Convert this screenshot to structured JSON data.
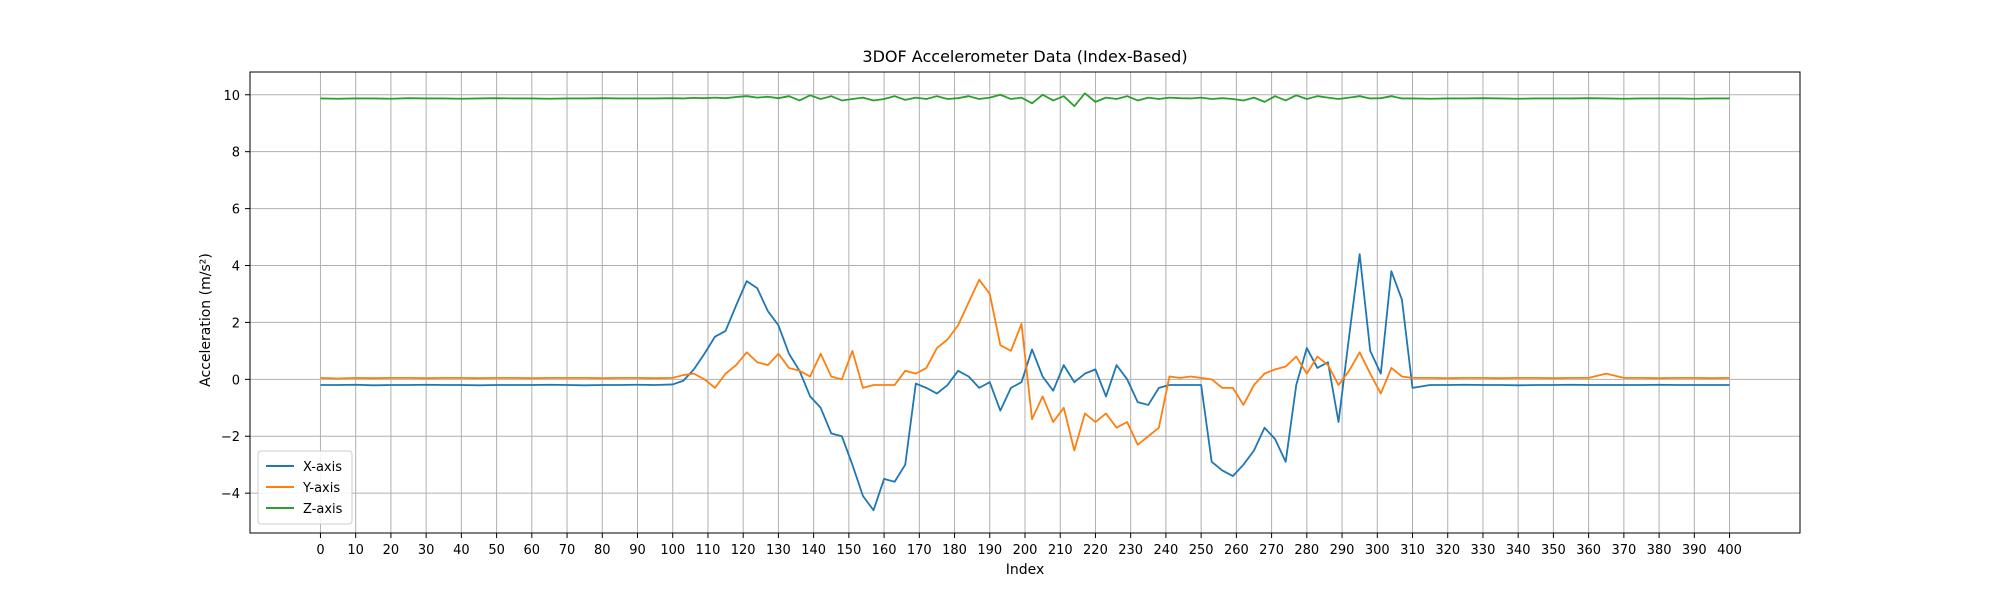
{
  "chart_data": {
    "type": "line",
    "title": "3DOF Accelerometer Data (Index-Based)",
    "xlabel": "Index",
    "ylabel": "Acceleration (m/s²)",
    "xlim": [
      -20,
      420
    ],
    "ylim": [
      -5.4,
      10.8
    ],
    "xticks": [
      0,
      10,
      20,
      30,
      40,
      50,
      60,
      70,
      80,
      90,
      100,
      110,
      120,
      130,
      140,
      150,
      160,
      170,
      180,
      190,
      200,
      210,
      220,
      230,
      240,
      250,
      260,
      270,
      280,
      290,
      300,
      310,
      320,
      330,
      340,
      350,
      360,
      370,
      380,
      390,
      400
    ],
    "yticks": [
      -4,
      -2,
      0,
      2,
      4,
      6,
      8,
      10
    ],
    "grid": true,
    "legend_position": "lower-left",
    "x": [
      0,
      5,
      10,
      15,
      20,
      25,
      30,
      35,
      40,
      45,
      50,
      55,
      60,
      65,
      70,
      75,
      80,
      85,
      90,
      95,
      100,
      103,
      106,
      109,
      112,
      115,
      118,
      121,
      124,
      127,
      130,
      133,
      136,
      139,
      142,
      145,
      148,
      151,
      154,
      157,
      160,
      163,
      166,
      169,
      172,
      175,
      178,
      181,
      184,
      187,
      190,
      193,
      196,
      199,
      202,
      205,
      208,
      211,
      214,
      217,
      220,
      223,
      226,
      229,
      232,
      235,
      238,
      241,
      244,
      247,
      250,
      253,
      256,
      259,
      262,
      265,
      268,
      271,
      274,
      277,
      280,
      283,
      286,
      289,
      292,
      295,
      298,
      301,
      304,
      307,
      310,
      315,
      320,
      325,
      330,
      335,
      340,
      345,
      350,
      355,
      360,
      365,
      370,
      375,
      380,
      385,
      390,
      395,
      400
    ],
    "series": [
      {
        "name": "X-axis",
        "color": "#1f77b4",
        "values": [
          -0.2,
          -0.2,
          -0.19,
          -0.21,
          -0.2,
          -0.2,
          -0.19,
          -0.2,
          -0.2,
          -0.21,
          -0.2,
          -0.2,
          -0.2,
          -0.19,
          -0.2,
          -0.21,
          -0.2,
          -0.2,
          -0.19,
          -0.2,
          -0.18,
          -0.05,
          0.35,
          0.9,
          1.5,
          1.7,
          2.6,
          3.45,
          3.2,
          2.4,
          1.9,
          0.9,
          0.3,
          -0.6,
          -1.0,
          -1.9,
          -2.0,
          -3.0,
          -4.1,
          -4.6,
          -3.5,
          -3.6,
          -3.0,
          -0.15,
          -0.3,
          -0.5,
          -0.2,
          0.3,
          0.1,
          -0.3,
          -0.1,
          -1.1,
          -0.3,
          -0.1,
          1.05,
          0.1,
          -0.4,
          0.5,
          -0.1,
          0.2,
          0.35,
          -0.6,
          0.5,
          0.0,
          -0.8,
          -0.9,
          -0.3,
          -0.2,
          -0.2,
          -0.2,
          -0.2,
          -2.9,
          -3.2,
          -3.4,
          -3.0,
          -2.5,
          -1.7,
          -2.1,
          -2.9,
          -0.2,
          1.1,
          0.4,
          0.6,
          -1.5,
          1.5,
          4.4,
          1.0,
          0.2,
          3.8,
          2.8,
          -0.3,
          -0.2,
          -0.2,
          -0.19,
          -0.2,
          -0.2,
          -0.21,
          -0.2,
          -0.2,
          -0.19,
          -0.2,
          -0.2,
          -0.2,
          -0.2,
          -0.19,
          -0.2,
          -0.2,
          -0.2,
          -0.2
        ]
      },
      {
        "name": "Y-axis",
        "color": "#ff7f0e",
        "values": [
          0.05,
          0.03,
          0.05,
          0.04,
          0.05,
          0.05,
          0.04,
          0.05,
          0.05,
          0.04,
          0.05,
          0.05,
          0.04,
          0.05,
          0.05,
          0.05,
          0.04,
          0.05,
          0.05,
          0.04,
          0.05,
          0.15,
          0.2,
          0.0,
          -0.3,
          0.2,
          0.5,
          0.95,
          0.6,
          0.5,
          0.9,
          0.4,
          0.3,
          0.1,
          0.9,
          0.1,
          0.0,
          1.0,
          -0.3,
          -0.2,
          -0.2,
          -0.2,
          0.3,
          0.2,
          0.4,
          1.1,
          1.4,
          1.9,
          2.7,
          3.5,
          3.0,
          1.2,
          1.0,
          1.95,
          -1.4,
          -0.6,
          -1.5,
          -1.0,
          -2.5,
          -1.2,
          -1.5,
          -1.2,
          -1.7,
          -1.5,
          -2.3,
          -2.0,
          -1.7,
          0.1,
          0.05,
          0.1,
          0.05,
          0.0,
          -0.3,
          -0.3,
          -0.9,
          -0.2,
          0.2,
          0.35,
          0.45,
          0.8,
          0.2,
          0.8,
          0.5,
          -0.2,
          0.3,
          0.95,
          0.2,
          -0.5,
          0.4,
          0.1,
          0.05,
          0.05,
          0.04,
          0.05,
          0.05,
          0.04,
          0.05,
          0.05,
          0.04,
          0.05,
          0.05,
          0.2,
          0.05,
          0.05,
          0.04,
          0.05,
          0.05,
          0.04,
          0.05
        ]
      },
      {
        "name": "Z-axis",
        "color": "#2ca02c",
        "values": [
          9.87,
          9.86,
          9.87,
          9.87,
          9.86,
          9.88,
          9.87,
          9.87,
          9.86,
          9.87,
          9.88,
          9.87,
          9.87,
          9.86,
          9.87,
          9.87,
          9.88,
          9.87,
          9.87,
          9.87,
          9.88,
          9.87,
          9.89,
          9.88,
          9.9,
          9.88,
          9.92,
          9.95,
          9.9,
          9.93,
          9.88,
          9.95,
          9.8,
          9.98,
          9.85,
          9.95,
          9.8,
          9.85,
          9.9,
          9.8,
          9.85,
          9.95,
          9.82,
          9.9,
          9.85,
          9.95,
          9.85,
          9.88,
          9.95,
          9.85,
          9.9,
          10.0,
          9.85,
          9.9,
          9.7,
          10.0,
          9.8,
          9.95,
          9.6,
          10.05,
          9.75,
          9.9,
          9.85,
          9.95,
          9.8,
          9.9,
          9.85,
          9.9,
          9.88,
          9.87,
          9.9,
          9.85,
          9.88,
          9.85,
          9.8,
          9.9,
          9.75,
          9.95,
          9.8,
          9.98,
          9.85,
          9.95,
          9.9,
          9.85,
          9.9,
          9.95,
          9.87,
          9.88,
          9.95,
          9.87,
          9.87,
          9.86,
          9.87,
          9.87,
          9.88,
          9.87,
          9.86,
          9.87,
          9.87,
          9.87,
          9.88,
          9.87,
          9.86,
          9.87,
          9.87,
          9.87,
          9.86,
          9.87,
          9.87
        ]
      }
    ]
  }
}
